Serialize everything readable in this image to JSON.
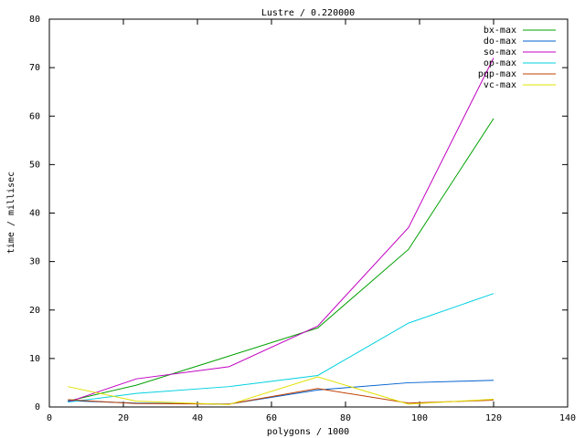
{
  "chart_data": {
    "type": "line",
    "title": "Lustre / 0.220000",
    "x_label": "polygons / 1000",
    "y_label": "time / millisec",
    "x": [
      5,
      23.5,
      48.5,
      72.5,
      97,
      120
    ],
    "series": [
      {
        "name": "bx-max",
        "color": "#00a000",
        "values": [
          1.2,
          4.5,
          10.5,
          16.3,
          32.5,
          59.5
        ]
      },
      {
        "name": "do-max",
        "color": "#0060d0",
        "values": [
          1.3,
          0.8,
          0.6,
          3.5,
          5.0,
          5.5
        ]
      },
      {
        "name": "so-max",
        "color": "#c000c0",
        "values": [
          1.0,
          5.8,
          8.3,
          16.7,
          37.0,
          72.0
        ]
      },
      {
        "name": "op-max",
        "color": "#00d0e0",
        "values": [
          1.0,
          2.8,
          4.2,
          6.5,
          17.3,
          23.4
        ]
      },
      {
        "name": "pqp-max",
        "color": "#c04000",
        "values": [
          1.5,
          0.7,
          0.6,
          3.8,
          0.8,
          1.4
        ]
      },
      {
        "name": "vc-max",
        "color": "#e0e000",
        "values": [
          4.2,
          1.2,
          0.5,
          6.2,
          0.6,
          1.6
        ]
      }
    ],
    "xlim": [
      0,
      140
    ],
    "xticks": [
      0,
      20,
      40,
      60,
      80,
      100,
      120,
      140
    ],
    "ylim": [
      0,
      80
    ],
    "yticks": [
      0,
      10,
      20,
      30,
      40,
      50,
      60,
      70,
      80
    ],
    "legend": "top-right"
  }
}
